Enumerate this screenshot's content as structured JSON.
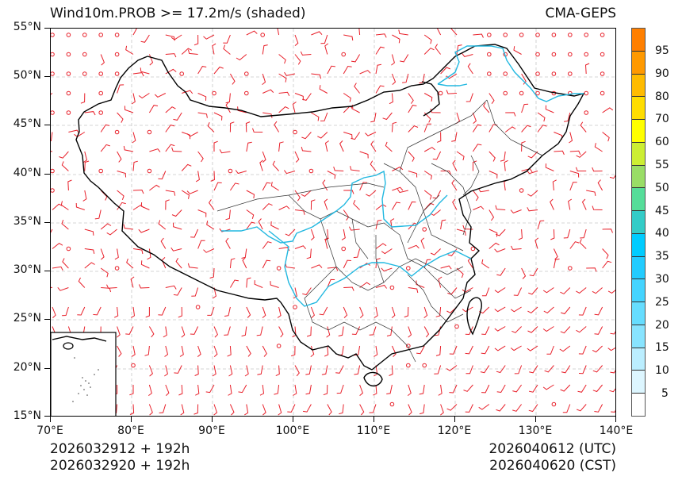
{
  "header": {
    "title": "Wind10m.PROB >= 17.2m/s (shaded)",
    "source": "CMA-GEPS"
  },
  "footer": {
    "init_utc": "2026032912 + 192h",
    "init_cst": "2026032920 + 192h",
    "valid_utc": "2026040612 (UTC)",
    "valid_cst": "2026040620 (CST)"
  },
  "axes": {
    "x_ticks": [
      "70°E",
      "80°E",
      "90°E",
      "100°E",
      "110°E",
      "120°E",
      "130°E",
      "140°E"
    ],
    "y_ticks": [
      "55°N",
      "50°N",
      "45°N",
      "40°N",
      "35°N",
      "30°N",
      "25°N",
      "20°N",
      "15°N"
    ],
    "lon_range": [
      70,
      140
    ],
    "lat_range": [
      15,
      55
    ]
  },
  "colorbar": {
    "levels": [
      "95",
      "90",
      "80",
      "70",
      "60",
      "55",
      "50",
      "45",
      "40",
      "35",
      "30",
      "25",
      "20",
      "15",
      "10",
      "5"
    ],
    "colors": [
      "#ff7f00",
      "#ff9900",
      "#ffbb00",
      "#ffdd00",
      "#ffff00",
      "#ccee33",
      "#99dd66",
      "#55dd99",
      "#33ccc7",
      "#00ccff",
      "#22ccff",
      "#44d4ff",
      "#66ddff",
      "#88e4ff",
      "#bbeeff",
      "#ddf6ff",
      "#ffffff"
    ]
  },
  "styles": {
    "barb_color": "#e8202a",
    "river_color": "#22b8e0",
    "border_color": "#111111",
    "grid_color": "#c8c8c8"
  },
  "map": {
    "barb_grid_spacing_deg": 2,
    "calm_marker": "circle",
    "inset": "South China Sea islands"
  }
}
